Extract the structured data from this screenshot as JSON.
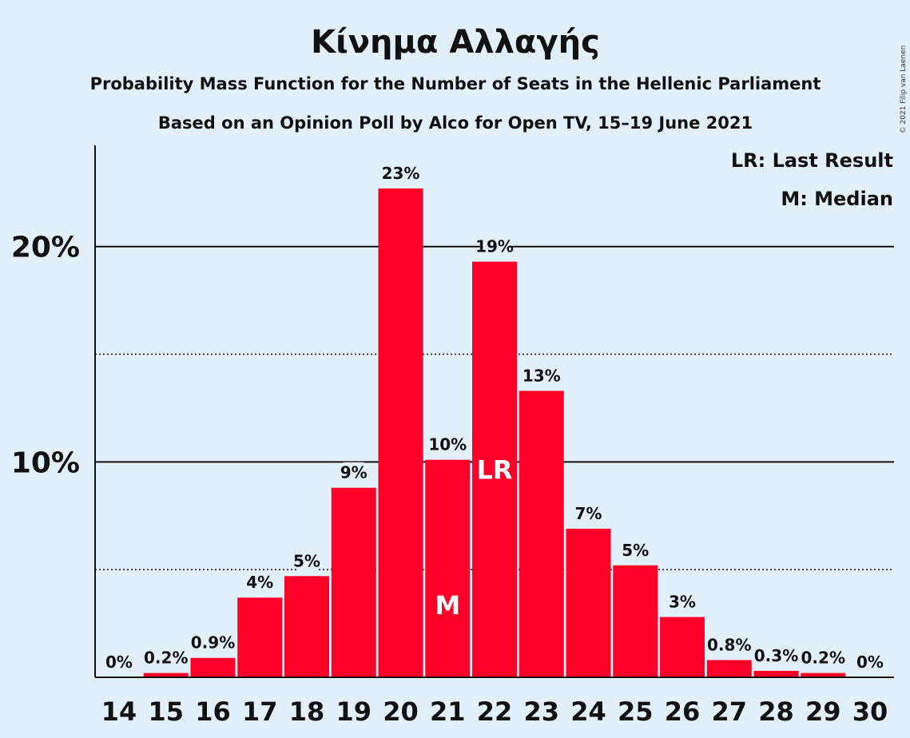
{
  "chart_data": {
    "type": "bar",
    "title": "Κίνημα Αλλαγής",
    "subtitle": "Probability Mass Function for the Number of Seats in the Hellenic Parliament",
    "subtitle2": "Based on an Opinion Poll by Alco for Open TV, 15–19 June 2021",
    "copyright": "© 2021 Filip van Laenen",
    "categories": [
      "14",
      "15",
      "16",
      "17",
      "18",
      "19",
      "20",
      "21",
      "22",
      "23",
      "24",
      "25",
      "26",
      "27",
      "28",
      "29",
      "30"
    ],
    "values": [
      0,
      0.2,
      0.9,
      3.7,
      4.7,
      8.8,
      22.7,
      10.1,
      19.3,
      13.3,
      6.9,
      5.2,
      2.8,
      0.8,
      0.3,
      0.2,
      0
    ],
    "data_labels": [
      "0%",
      "0.2%",
      "0.9%",
      "4%",
      "5%",
      "9%",
      "23%",
      "10%",
      "19%",
      "13%",
      "7%",
      "5%",
      "3%",
      "0.8%",
      "0.3%",
      "0.2%",
      "0%"
    ],
    "y_ticks": [
      {
        "value": 10,
        "label": "10%"
      },
      {
        "value": 20,
        "label": "20%"
      }
    ],
    "y_minor_ticks": [
      5,
      15
    ],
    "ylim": [
      0,
      24.7
    ],
    "bar_color": "#ff0029",
    "background": "#e2f0fc",
    "markers": [
      {
        "category": "21",
        "label": "M"
      },
      {
        "category": "22",
        "label": "LR"
      }
    ],
    "legend": {
      "position": "top-right",
      "items": [
        "LR: Last Result",
        "M: Median"
      ]
    }
  }
}
